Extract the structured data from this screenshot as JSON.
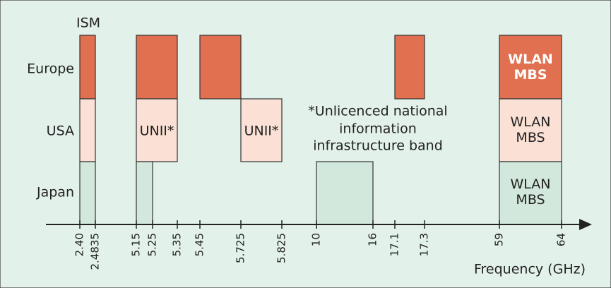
{
  "labels": {
    "ism": "ISM",
    "axis": "Frequency (GHz)"
  },
  "rows": [
    "Europe",
    "USA",
    "Japan"
  ],
  "ticks": [
    "2.40",
    "2.4835",
    "5.15",
    "5.25",
    "5.35",
    "5.45",
    "5.725",
    "5.825",
    "10",
    "16",
    "17.1",
    "17.3",
    "59",
    "64"
  ],
  "blocks": {
    "europe_60ghz": "WLAN\nMBS",
    "usa_unii_low": "UNII*",
    "usa_unii_high": "UNII*",
    "usa_60ghz": "WLAN\nMBS",
    "japan_60ghz": "WLAN\nMBS"
  },
  "note": [
    "*Unlicenced national",
    "information",
    "infrastructure band"
  ]
}
